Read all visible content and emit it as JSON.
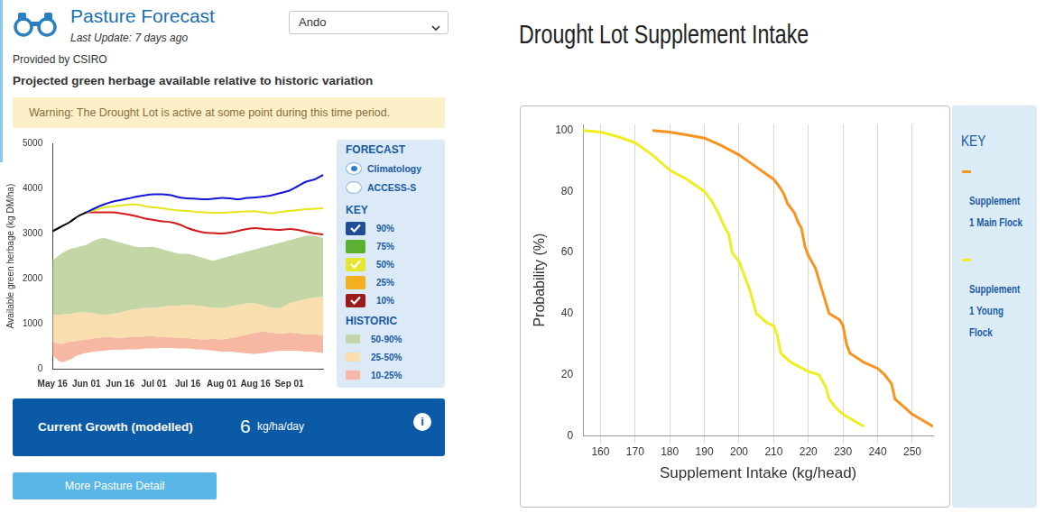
{
  "page": {
    "header": {
      "title": "Pasture Forecast",
      "subtitle": "Last Update: 7 days ago",
      "dropdown": "Ando"
    },
    "provider": "Provided by CSIRO",
    "warning": "Warning: The Drought Lot is active at some point during this time period.",
    "forecast_panel": {
      "title": "FORECAST",
      "options": [
        {
          "label": "Climatology",
          "selected": true
        },
        {
          "label": "ACCESS-S",
          "selected": false
        }
      ]
    },
    "key_panel": {
      "title": "KEY",
      "items": [
        {
          "label": "90%",
          "color": "#1f4e96",
          "checked": true
        },
        {
          "label": "75%",
          "color": "#5cb030",
          "checked": false
        },
        {
          "label": "50%",
          "color": "#e6e62e",
          "checked": true
        },
        {
          "label": "25%",
          "color": "#f2b01e",
          "checked": false
        },
        {
          "label": "10%",
          "color": "#9e1b1b",
          "checked": true
        }
      ]
    },
    "historic_panel": {
      "title": "HISTORIC"
    },
    "growth": {
      "label": "Current Growth (modelled)",
      "value": 6,
      "unit": "kg/ha/day",
      "info": "i"
    },
    "button": "More Pasture Detail"
  },
  "chart_data": [
    {
      "type": "line",
      "title": "Projected green herbage available relative to historic variation",
      "y_label": "Available green herbage (kg DM/ha)",
      "categories": [
        "May 16",
        null,
        null,
        null,
        "Jun 01",
        null,
        null,
        null,
        "Jun 16",
        null,
        null,
        null,
        "Jul 01",
        null,
        null,
        null,
        "Jul 16",
        null,
        null,
        null,
        "Aug 01",
        null,
        null,
        null,
        "Aug 16",
        null,
        null,
        null,
        "Sep 01",
        null,
        null,
        null,
        null
      ],
      "ylim": [
        0,
        5000
      ],
      "yticks": [
        0,
        1000,
        2000,
        3000,
        4000,
        5000
      ],
      "grid": false,
      "series": [
        {
          "color": "#000000",
          "values": [
            3050,
            3150,
            3250,
            3380,
            3470,
            null,
            null,
            null,
            null,
            null,
            null,
            null,
            null,
            null,
            null,
            null,
            null,
            null,
            null,
            null,
            null,
            null,
            null,
            null,
            null,
            null,
            null,
            null,
            null,
            null,
            null,
            null,
            null
          ]
        },
        {
          "color": "#1515d8",
          "values": [
            null,
            null,
            null,
            null,
            3470,
            3560,
            3640,
            3700,
            3740,
            3780,
            3820,
            3850,
            3870,
            3870,
            3850,
            3800,
            3780,
            3770,
            3760,
            3770,
            3790,
            3780,
            3760,
            3790,
            3800,
            3820,
            3850,
            3900,
            3950,
            4050,
            4150,
            4200,
            4300
          ]
        },
        {
          "color": "#e6e61e",
          "values": [
            null,
            null,
            null,
            null,
            3470,
            3520,
            3570,
            3600,
            3620,
            3640,
            3640,
            3600,
            3580,
            3560,
            3530,
            3510,
            3500,
            3480,
            3470,
            3460,
            3460,
            3470,
            3480,
            3490,
            3490,
            3470,
            3450,
            3480,
            3500,
            3520,
            3540,
            3550,
            3560
          ]
        },
        {
          "color": "#d41a1a",
          "values": [
            null,
            null,
            null,
            null,
            3470,
            3470,
            3470,
            3470,
            3450,
            3420,
            3380,
            3330,
            3300,
            3270,
            3250,
            3200,
            3120,
            3060,
            3020,
            3010,
            3000,
            3020,
            3060,
            3100,
            3120,
            3100,
            3090,
            3080,
            3100,
            3080,
            3040,
            3000,
            2980
          ]
        }
      ],
      "bands": [
        {
          "name": "50-90%",
          "color": "#c5d6a6",
          "lower": [
            1200,
            1200,
            1220,
            1250,
            1250,
            1230,
            1200,
            1220,
            1250,
            1300,
            1320,
            1350,
            1350,
            1380,
            1400,
            1400,
            1420,
            1400,
            1380,
            1350,
            1350,
            1380,
            1420,
            1450,
            1450,
            1400,
            1350,
            1350,
            1450,
            1500,
            1550,
            1580,
            1600
          ],
          "upper": [
            2400,
            2550,
            2650,
            2700,
            2750,
            2850,
            2900,
            2850,
            2800,
            2750,
            2700,
            2700,
            2700,
            2650,
            2600,
            2550,
            2550,
            2500,
            2450,
            2400,
            2450,
            2500,
            2550,
            2600,
            2650,
            2700,
            2750,
            2800,
            2850,
            2900,
            2950,
            2950,
            2900
          ]
        },
        {
          "name": "25-50%",
          "color": "#f9dfae",
          "lower": [
            600,
            550,
            600,
            620,
            650,
            680,
            700,
            700,
            680,
            700,
            700,
            720,
            720,
            700,
            700,
            680,
            680,
            660,
            650,
            660,
            650,
            680,
            720,
            760,
            800,
            820,
            800,
            780,
            800,
            780,
            770,
            760,
            750
          ],
          "upper": [
            1200,
            1200,
            1220,
            1250,
            1250,
            1230,
            1200,
            1220,
            1250,
            1300,
            1320,
            1350,
            1350,
            1380,
            1400,
            1400,
            1420,
            1400,
            1380,
            1350,
            1350,
            1380,
            1420,
            1450,
            1450,
            1400,
            1350,
            1350,
            1450,
            1500,
            1550,
            1580,
            1600
          ]
        },
        {
          "name": "10-25%",
          "color": "#f6b8a2",
          "lower": [
            300,
            150,
            200,
            300,
            350,
            380,
            400,
            420,
            420,
            430,
            430,
            450,
            450,
            460,
            460,
            450,
            450,
            430,
            420,
            400,
            380,
            380,
            360,
            340,
            330,
            350,
            380,
            400,
            400,
            400,
            380,
            370,
            350
          ],
          "upper": [
            600,
            550,
            600,
            620,
            650,
            680,
            700,
            700,
            680,
            700,
            700,
            720,
            720,
            700,
            700,
            680,
            680,
            660,
            650,
            660,
            650,
            680,
            720,
            760,
            800,
            820,
            800,
            780,
            800,
            780,
            770,
            760,
            750
          ]
        }
      ]
    },
    {
      "type": "line",
      "title": "Drought Lot Supplement Intake",
      "x_label": "Supplement Intake (kg/head)",
      "y_label": "Probability (%)",
      "xlim": [
        155,
        256
      ],
      "xticks": [
        160,
        170,
        180,
        190,
        200,
        210,
        220,
        230,
        240,
        250
      ],
      "ylim": [
        0,
        102
      ],
      "yticks": [
        0,
        20,
        40,
        60,
        80,
        100
      ],
      "grid": "x",
      "legend": "right",
      "legend_title": "KEY",
      "series": [
        {
          "name": "Supplement 1 Main Flock",
          "color": "#f7941d",
          "x": [
            175,
            180,
            185,
            190,
            195,
            200,
            205,
            210,
            212,
            213,
            214,
            216,
            217,
            218,
            219,
            220,
            222,
            226,
            229,
            230,
            231,
            232,
            236,
            240,
            242,
            244,
            245,
            247,
            250,
            253,
            256
          ],
          "values": [
            100,
            99.5,
            98.5,
            97.5,
            95,
            92,
            88,
            84,
            81,
            79,
            76,
            73,
            70,
            68,
            62,
            59,
            55,
            40,
            38,
            36,
            30,
            27,
            24,
            22,
            20,
            17,
            12,
            10,
            7,
            5,
            3
          ]
        },
        {
          "name": "Supplement 1 Young Flock",
          "color": "#eeee22",
          "x": [
            155,
            160,
            165,
            170,
            175,
            180,
            185,
            190,
            192,
            194,
            196,
            197,
            198,
            200,
            203,
            205,
            208,
            210,
            211,
            212,
            215,
            220,
            223,
            225,
            226,
            228,
            230,
            233,
            236
          ],
          "values": [
            100,
            99.5,
            98,
            96,
            92,
            87,
            84,
            80,
            77,
            73,
            68,
            66,
            60,
            57,
            48,
            40,
            37,
            36,
            33,
            27,
            24,
            21,
            20,
            16,
            12,
            9,
            7,
            5,
            3
          ]
        }
      ]
    }
  ]
}
